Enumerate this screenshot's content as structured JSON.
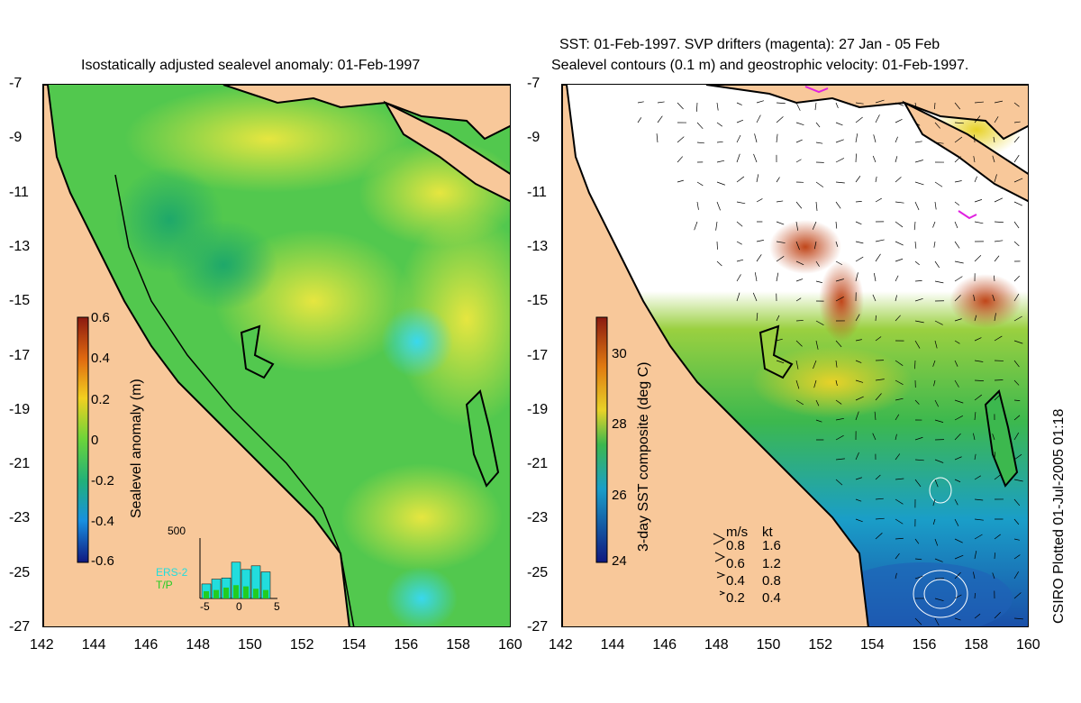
{
  "left_panel": {
    "title": "Isostatically adjusted sealevel anomaly: 01-Feb-1997",
    "colorbar": {
      "label": "Sealevel anomaly (m)",
      "ticks": [
        "0.6",
        "0.4",
        "0.2",
        "0",
        "-0.2",
        "-0.4",
        "-0.6"
      ],
      "range": [
        -0.6,
        0.6
      ]
    },
    "inset": {
      "ymax_label": "500",
      "x_ticks": [
        "-5",
        "0",
        "5"
      ],
      "legend": [
        {
          "label": "ERS-2",
          "color": "#22dddd"
        },
        {
          "label": "T/P",
          "color": "#22cc22"
        }
      ],
      "ers2_counts": [
        120,
        160,
        170,
        300,
        240,
        270,
        220
      ],
      "tp_counts": [
        60,
        70,
        90,
        110,
        100,
        80,
        70
      ]
    }
  },
  "right_panel": {
    "title_line1": "SST: 01-Feb-1997. SVP drifters (magenta): 27 Jan - 05 Feb",
    "title_line2": "Sealevel contours (0.1 m) and geostrophic velocity: 01-Feb-1997.",
    "colorbar": {
      "label": "3-day SST composite (deg C)",
      "ticks": [
        "30",
        "28",
        "26",
        "24"
      ],
      "range": [
        24,
        31
      ]
    },
    "velocity_legend": {
      "header_ms": "m/s",
      "header_kt": "kt",
      "rows": [
        {
          "ms": "0.8",
          "kt": "1.6"
        },
        {
          "ms": "0.6",
          "kt": "1.2"
        },
        {
          "ms": "0.4",
          "kt": "0.8"
        },
        {
          "ms": "0.2",
          "kt": "0.4"
        }
      ]
    }
  },
  "axes": {
    "lat_labels": [
      "-7",
      "-9",
      "-11",
      "-13",
      "-15",
      "-17",
      "-19",
      "-21",
      "-23",
      "-25",
      "-27"
    ],
    "lon_labels": [
      "142",
      "144",
      "146",
      "148",
      "150",
      "152",
      "154",
      "156",
      "158",
      "160"
    ],
    "lat_range": [
      -27,
      -7
    ],
    "lon_range": [
      142,
      160
    ]
  },
  "credit": "CSIRO Plotted 01-Jul-2005 01:18",
  "colors": {
    "land": "#f8c89a",
    "ocean_green": "#3cc45a",
    "ocean_yellow": "#c8e628",
    "sst_white": "#ffffff",
    "sst_blue": "#1e78d2",
    "drifter_magenta": "#e020e0"
  }
}
